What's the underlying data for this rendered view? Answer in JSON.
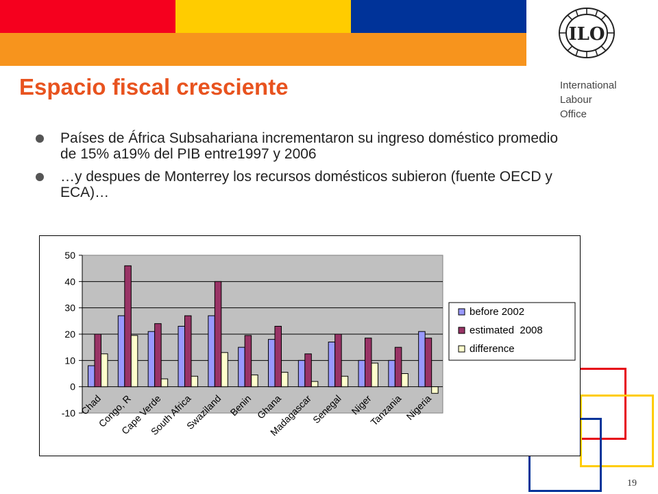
{
  "colors": {
    "band_red": "#f5001e",
    "band_yellow": "#ffcc00",
    "band_blue": "#003399",
    "band_orange": "#f7941d",
    "title": "#e8531f",
    "series_before": "#9999ff",
    "series_estimated": "#993366",
    "series_difference": "#ffffcc",
    "plot_bg": "#c0c0c0"
  },
  "header": {
    "logo_icon": "ilo-emblem-icon",
    "logo_text": "ILO",
    "org_lines": [
      "International",
      "Labour",
      "Office"
    ]
  },
  "slide": {
    "title": "Espacio fiscal cresciente",
    "bullets": [
      "Países de África Subsahariana incrementaron su ingreso doméstico promedio de 15% a19% del PIB entre1997 y 2006",
      "…y despues de Monterrey los recursos domésticos subieron (fuente OECD y ECA)…"
    ],
    "page_number": "19"
  },
  "chart_data": {
    "type": "bar",
    "title": "",
    "xlabel": "",
    "ylabel": "",
    "ylim": [
      -10,
      50
    ],
    "yticks": [
      -10,
      0,
      10,
      20,
      30,
      40,
      50
    ],
    "grid": true,
    "legend_position": "right",
    "categories": [
      "Chad",
      "Congo, R",
      "Cape Verde",
      "South Africa",
      "Swaziland",
      "Benin",
      "Ghana",
      "Madagascar",
      "Senegal",
      "Niger",
      "Tanzania",
      "Nigeria"
    ],
    "series": [
      {
        "name": "before 2002",
        "values": [
          8,
          27,
          21,
          23,
          27,
          15,
          18,
          10,
          17,
          10,
          10,
          21
        ]
      },
      {
        "name": "estimated  2008",
        "values": [
          20,
          46,
          24,
          27,
          40,
          19.5,
          23,
          12.5,
          20,
          18.5,
          15,
          18.5
        ]
      },
      {
        "name": "difference",
        "values": [
          12.5,
          19.5,
          3,
          4,
          13,
          4.5,
          5.5,
          2,
          4,
          9,
          5,
          -2.5
        ]
      }
    ]
  }
}
